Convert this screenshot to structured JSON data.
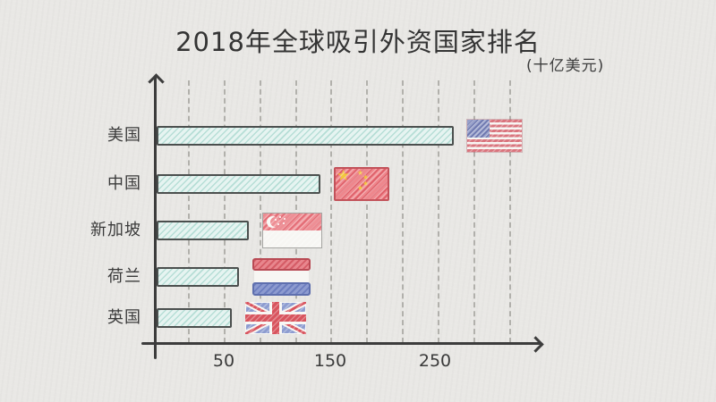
{
  "header": {
    "title": "2018年全球吸引外资国家排名",
    "unit_label": "(十亿美元)"
  },
  "chart_data": {
    "type": "bar",
    "orientation": "horizontal",
    "title": "2018年全球吸引外资国家排名",
    "unit": "十亿美元",
    "categories": [
      "美国",
      "中国",
      "新加坡",
      "荷兰",
      "英国"
    ],
    "values": [
      252,
      139,
      78,
      70,
      64
    ],
    "x_ticks": [
      "50",
      "150",
      "250"
    ],
    "xlim": [
      0,
      330
    ],
    "grid": "vertical-dashed",
    "legend": "none",
    "flags": [
      "us-flag",
      "china-flag",
      "singapore-flag",
      "netherlands-flag",
      "uk-flag"
    ]
  },
  "colors": {
    "paper": "#e9e8e5",
    "ink": "#3c3c3c",
    "bar_fill": "#e6f4f1",
    "bar_hatch": "#7cc3b6",
    "bar_border": "#4b4f4e",
    "gridline": "#a9a8a3",
    "flag_red": "#d8545e",
    "flag_blue": "#8d9cd0",
    "star_yellow": "#f2c63c"
  }
}
